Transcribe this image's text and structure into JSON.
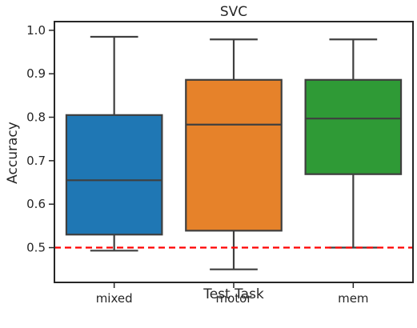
{
  "chart_data": {
    "type": "box",
    "title": "SVC",
    "xlabel": "Test Task",
    "ylabel": "Accuracy",
    "ylim": [
      0.42,
      1.02
    ],
    "yticks": [
      0.5,
      0.6,
      0.7,
      0.8,
      0.9,
      1.0
    ],
    "ytick_labels": [
      "0.5",
      "0.6",
      "0.7",
      "0.8",
      "0.9",
      "1.0"
    ],
    "categories": [
      "mixed",
      "motor",
      "mem"
    ],
    "boxes": [
      {
        "category": "mixed",
        "color": "#1f77b4",
        "whisker_low": 0.493,
        "q1": 0.53,
        "median": 0.655,
        "q3": 0.805,
        "whisker_high": 0.985
      },
      {
        "category": "motor",
        "color": "#e6822a",
        "whisker_low": 0.45,
        "q1": 0.539,
        "median": 0.783,
        "q3": 0.886,
        "whisker_high": 0.979
      },
      {
        "category": "mem",
        "color": "#2f9a36",
        "whisker_low": 0.5,
        "q1": 0.669,
        "median": 0.797,
        "q3": 0.886,
        "whisker_high": 0.979
      }
    ],
    "reference_line": {
      "y": 0.5,
      "color": "#ff0000",
      "style": "dashed"
    },
    "grid": false,
    "legend": "none"
  }
}
